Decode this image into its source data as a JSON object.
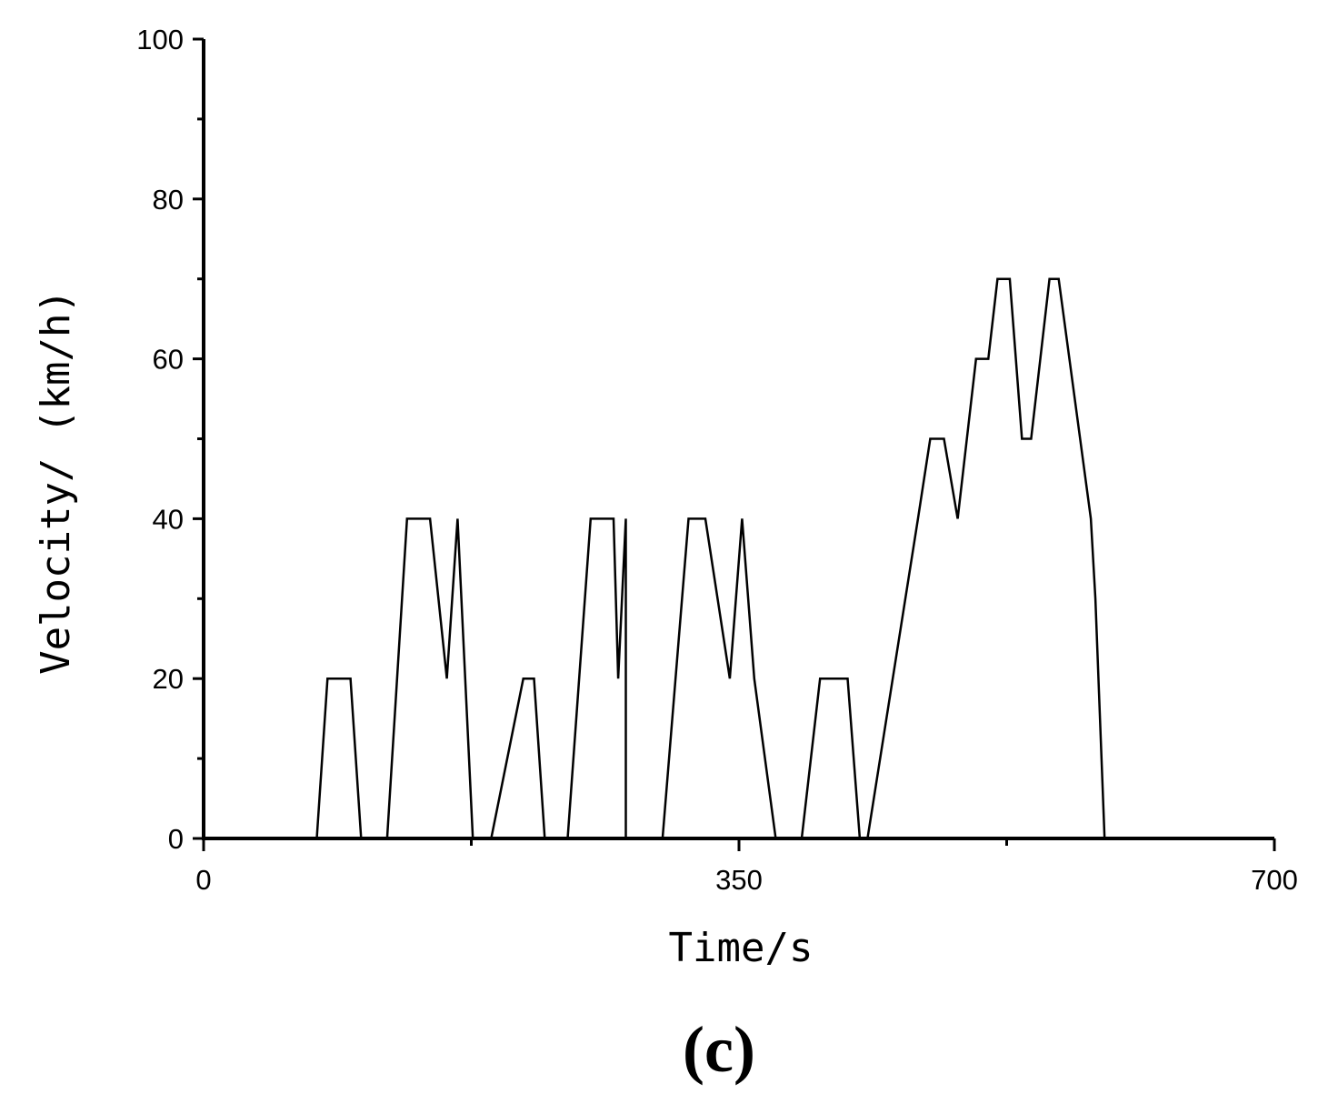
{
  "chart_data": {
    "type": "line",
    "xlabel": "Time/s",
    "ylabel": "Velocity/ (km/h)",
    "panel_label": "(c)",
    "xlim": [
      0,
      700
    ],
    "ylim": [
      0,
      100
    ],
    "x_ticks": [
      0,
      350,
      700
    ],
    "x_tick_labels": [
      "0",
      "350",
      "700"
    ],
    "x_minor_ticks": [
      175,
      525
    ],
    "y_ticks": [
      0,
      20,
      40,
      60,
      80,
      100
    ],
    "y_tick_labels": [
      "0",
      "20",
      "40",
      "60",
      "80",
      "100"
    ],
    "y_minor_ticks": [
      10,
      30,
      50,
      70,
      90
    ],
    "grid": false,
    "line_color": "#000000",
    "series": [
      {
        "x": [
          0,
          74,
          81,
          96,
          103,
          120,
          133,
          148,
          159,
          166,
          171,
          176,
          188,
          209,
          216,
          223,
          238,
          253,
          268,
          271,
          276,
          276,
          288,
          300,
          317,
          328,
          344,
          352,
          360,
          374,
          391,
          403,
          421,
          429,
          434,
          434,
          467,
          475,
          484,
          493,
          505,
          513,
          519,
          527,
          535,
          541,
          553,
          559,
          580,
          583,
          589,
          594,
          668,
          686,
          700
        ],
        "y": [
          0,
          0,
          20,
          20,
          0,
          0,
          40,
          40,
          20,
          40,
          20,
          0,
          0,
          20,
          20,
          0,
          0,
          40,
          40,
          20,
          40,
          0,
          0,
          0,
          40,
          40,
          20,
          40,
          20,
          0,
          0,
          20,
          20,
          0,
          0,
          0,
          40,
          50,
          50,
          40,
          60,
          60,
          70,
          70,
          50,
          50,
          70,
          70,
          40,
          30,
          0,
          0,
          0,
          0,
          0
        ]
      }
    ]
  }
}
